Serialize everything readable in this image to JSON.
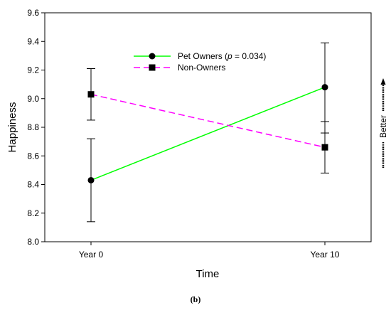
{
  "caption": "(b)",
  "chart_data": {
    "type": "line",
    "categories": [
      "Year 0",
      "Year 10"
    ],
    "xlabel": "Time",
    "ylabel": "Happiness",
    "ylim": [
      8.0,
      9.6
    ],
    "yticks": [
      "8.0",
      "8.2",
      "8.4",
      "8.6",
      "8.8",
      "9.0",
      "9.2",
      "9.4",
      "9.6"
    ],
    "grid": false,
    "legend_position": "top-center",
    "series": [
      {
        "name": "Pet Owners (p = 0.034)",
        "name_parts": [
          "Pet Owners (",
          "p",
          " = 0.034)"
        ],
        "values": [
          8.43,
          9.08
        ],
        "error_low": [
          8.14,
          8.76
        ],
        "error_high": [
          8.72,
          9.39
        ],
        "color": "#00ff00",
        "marker": "circle",
        "line_style": "solid"
      },
      {
        "name": "Non-Owners",
        "values": [
          9.03,
          8.66
        ],
        "error_low": [
          8.85,
          8.48
        ],
        "error_high": [
          9.21,
          8.84
        ],
        "color": "#ff00ff",
        "marker": "square",
        "line_style": "dashed"
      }
    ],
    "annotation": "Better",
    "annotation_direction": "up"
  }
}
